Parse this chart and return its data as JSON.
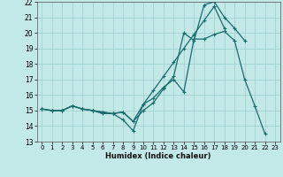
{
  "xlabel": "Humidex (Indice chaleur)",
  "xlim": [
    -0.5,
    23.5
  ],
  "ylim": [
    13,
    22
  ],
  "yticks": [
    13,
    14,
    15,
    16,
    17,
    18,
    19,
    20,
    21,
    22
  ],
  "xticks": [
    0,
    1,
    2,
    3,
    4,
    5,
    6,
    7,
    8,
    9,
    10,
    11,
    12,
    13,
    14,
    15,
    16,
    17,
    18,
    19,
    20,
    21,
    22,
    23
  ],
  "bg_color": "#c2e8e8",
  "grid_color": "#9ecece",
  "line_color": "#1a6b6b",
  "series": [
    {
      "x": [
        0,
        1,
        2,
        3,
        4,
        5,
        6,
        7,
        8,
        9,
        10,
        11,
        12,
        13,
        14,
        15,
        16,
        17,
        18,
        19,
        20,
        21,
        22
      ],
      "y": [
        15.1,
        15.0,
        15.0,
        15.3,
        15.1,
        15.0,
        14.8,
        14.8,
        14.4,
        13.7,
        15.4,
        15.8,
        16.5,
        17.0,
        16.2,
        19.6,
        19.6,
        19.9,
        20.1,
        19.5,
        17.0,
        15.3,
        13.5
      ]
    },
    {
      "x": [
        0,
        1,
        2,
        3,
        4,
        5,
        6,
        7,
        8,
        9,
        10,
        11,
        12,
        13,
        14,
        15,
        16,
        17,
        18,
        19,
        20
      ],
      "y": [
        15.1,
        15.0,
        15.0,
        15.3,
        15.1,
        15.0,
        14.9,
        14.8,
        14.9,
        14.3,
        15.0,
        15.5,
        16.4,
        17.2,
        20.0,
        19.5,
        21.8,
        22.0,
        21.0,
        20.3,
        19.5
      ]
    },
    {
      "x": [
        0,
        1,
        2,
        3,
        4,
        5,
        6,
        7,
        8,
        9,
        10,
        11,
        12,
        13,
        14,
        15,
        16,
        17,
        18
      ],
      "y": [
        15.1,
        15.0,
        15.0,
        15.3,
        15.1,
        15.0,
        14.9,
        14.8,
        14.9,
        14.3,
        15.4,
        16.3,
        17.2,
        18.1,
        19.0,
        19.9,
        20.8,
        21.7,
        20.3
      ]
    }
  ]
}
